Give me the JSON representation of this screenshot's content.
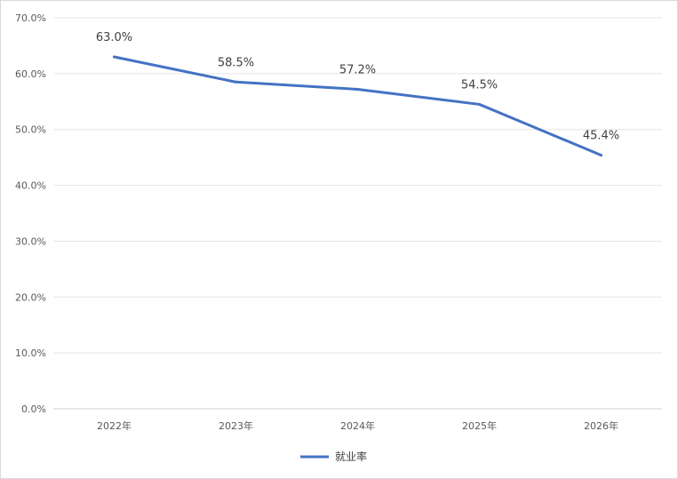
{
  "chart_data": {
    "type": "line",
    "categories": [
      "2022年",
      "2023年",
      "2024年",
      "2025年",
      "2026年"
    ],
    "series": [
      {
        "name": "就业率",
        "values": [
          63.0,
          58.5,
          57.2,
          54.5,
          45.4
        ],
        "labels": [
          "63.0%",
          "58.5%",
          "57.2%",
          "54.5%",
          "45.4%"
        ],
        "color": "#4472c4"
      }
    ],
    "ylim": [
      0,
      70
    ],
    "yticks": [
      0,
      10,
      20,
      30,
      40,
      50,
      60,
      70
    ],
    "ytick_labels": [
      "0.0%",
      "10.0%",
      "20.0%",
      "30.0%",
      "40.0%",
      "50.0%",
      "60.0%",
      "70.0%"
    ],
    "grid": true,
    "legend": "bottom-center",
    "title": "",
    "xlabel": "",
    "ylabel": ""
  }
}
